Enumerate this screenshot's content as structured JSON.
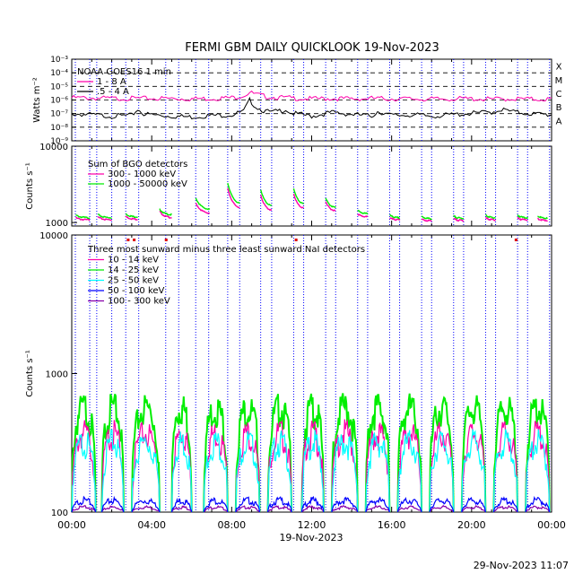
{
  "title": "FERMI GBM DAILY QUICKLOOK   19-Nov-2023",
  "footer": "29-Nov-2023 11:07",
  "xaxis": {
    "ticks": [
      "00:00",
      "04:00",
      "08:00",
      "12:00",
      "16:00",
      "20:00",
      "00:00"
    ],
    "label": "19-Nov-2023",
    "range_hours": [
      0,
      24
    ]
  },
  "colors": {
    "black": "#000000",
    "magenta": "#ff00aa",
    "green": "#00ee00",
    "cyan": "#00ffff",
    "blue": "#0000ff",
    "purple": "#8800aa",
    "red": "#dd0000",
    "saa_lines": "#0000ff"
  },
  "saa_hours": [
    0.18,
    0.9,
    1.25,
    2.0,
    2.7,
    3.35,
    4.7,
    5.35,
    6.2,
    6.85,
    7.8,
    8.4,
    9.45,
    10.0,
    11.1,
    11.6,
    12.7,
    13.2,
    14.3,
    14.8,
    15.9,
    16.4,
    17.5,
    18.0,
    19.1,
    19.6,
    20.7,
    21.2,
    22.3,
    22.8,
    23.9
  ],
  "chart_data": [
    {
      "type": "line",
      "title": "",
      "ylabel": "Watts m⁻²",
      "yscale": "log",
      "ylim": [
        1e-09,
        0.001
      ],
      "yticks": [
        "10⁻³",
        "10⁻⁴",
        "10⁻⁵",
        "10⁻⁶",
        "10⁻⁷",
        "10⁻⁸",
        "10⁻⁹"
      ],
      "class_labels": [
        "X",
        "M",
        "C",
        "B",
        "A"
      ],
      "legend": {
        "heading": "NOAA GOES16 1 min",
        "placement": "top-left"
      },
      "series": [
        {
          "name": "1 - 8 A",
          "color": "#ff00aa",
          "x": [
            0,
            1,
            2,
            3,
            4,
            5,
            6,
            7,
            8,
            8.6,
            8.9,
            9.2,
            9.6,
            10,
            11,
            12,
            13,
            14,
            15,
            16,
            17,
            18,
            19,
            20,
            21,
            22,
            23,
            24
          ],
          "y": [
            1.8e-06,
            1.7e-06,
            1.6e-06,
            1.6e-06,
            1.6e-06,
            1.6e-06,
            1.5e-06,
            1.6e-06,
            1.8e-06,
            2.6e-06,
            4.5e-06,
            3.2e-06,
            2.4e-06,
            2e-06,
            1.7e-06,
            1.5e-06,
            1.6e-06,
            1.5e-06,
            1.6e-06,
            1.5e-06,
            1.5e-06,
            1.4e-06,
            1.5e-06,
            1.5e-06,
            1.4e-06,
            1.5e-06,
            1.4e-06,
            1.4e-06
          ]
        },
        {
          "name": ".5 - 4 A",
          "color": "#000000",
          "x": [
            0,
            1,
            2,
            3,
            3.3,
            3.6,
            4,
            5,
            6,
            7,
            8,
            8.6,
            8.9,
            9.2,
            9.6,
            10,
            10.7,
            11,
            12,
            13,
            14,
            15,
            15.3,
            16,
            17,
            18,
            19,
            20,
            21,
            21.5,
            22,
            23,
            24
          ],
          "y": [
            1.2e-07,
            1e-07,
            8e-08,
            9e-08,
            2.5e-07,
            1.2e-07,
            1e-07,
            8e-08,
            7e-08,
            9e-08,
            1e-07,
            1.8e-07,
            1.2e-06,
            4e-07,
            2e-07,
            1.5e-07,
            2.5e-07,
            1.3e-07,
            8e-08,
            1.5e-07,
            1.1e-07,
            8e-08,
            1.8e-07,
            9e-08,
            1e-07,
            8e-08,
            1e-07,
            1.3e-07,
            1.6e-07,
            2.5e-07,
            1.7e-07,
            1.2e-07,
            1e-07
          ]
        }
      ]
    },
    {
      "type": "line",
      "title": "",
      "ylabel": "Counts s⁻¹",
      "yscale": "log",
      "ylim": [
        900,
        10000
      ],
      "yticks": [
        "10000",
        "1000"
      ],
      "legend": {
        "heading": "Sum of BGO detectors",
        "placement": "top-left"
      },
      "series": [
        {
          "name": "300 - 1000 keV",
          "color": "#ff00aa",
          "arcs": [
            [
              0.2,
              0.9,
              1150,
              1080
            ],
            [
              1.3,
              2.0,
              1180,
              1080
            ],
            [
              2.7,
              3.3,
              1200,
              1100
            ],
            [
              4.4,
              5.0,
              1400,
              1150
            ],
            [
              6.2,
              6.9,
              1800,
              1300
            ],
            [
              7.8,
              8.4,
              2800,
              1500
            ],
            [
              9.45,
              10.0,
              2300,
              1400
            ],
            [
              11.1,
              11.6,
              2400,
              1500
            ],
            [
              12.7,
              13.2,
              1900,
              1400
            ],
            [
              14.3,
              14.8,
              1300,
              1180
            ],
            [
              15.9,
              16.4,
              1150,
              1080
            ],
            [
              17.5,
              18.0,
              1100,
              1050
            ],
            [
              19.1,
              19.6,
              1120,
              1060
            ],
            [
              20.7,
              21.2,
              1150,
              1080
            ],
            [
              22.3,
              22.8,
              1150,
              1080
            ],
            [
              23.3,
              23.8,
              1120,
              1060
            ]
          ]
        },
        {
          "name": "1000 - 50000 keV",
          "color": "#00ee00",
          "arcs": [
            [
              0.2,
              0.9,
              1250,
              1150
            ],
            [
              1.3,
              2.0,
              1280,
              1150
            ],
            [
              2.7,
              3.3,
              1300,
              1180
            ],
            [
              4.4,
              5.0,
              1500,
              1250
            ],
            [
              6.2,
              6.9,
              2100,
              1450
            ],
            [
              7.8,
              8.4,
              3300,
              1700
            ],
            [
              9.45,
              10.0,
              2700,
              1600
            ],
            [
              11.1,
              11.6,
              2800,
              1700
            ],
            [
              12.7,
              13.2,
              2100,
              1550
            ],
            [
              14.3,
              14.8,
              1450,
              1300
            ],
            [
              15.9,
              16.4,
              1250,
              1150
            ],
            [
              17.5,
              18.0,
              1200,
              1120
            ],
            [
              19.1,
              19.6,
              1220,
              1130
            ],
            [
              20.7,
              21.2,
              1250,
              1150
            ],
            [
              22.3,
              22.8,
              1250,
              1150
            ],
            [
              23.3,
              23.8,
              1220,
              1130
            ]
          ]
        }
      ]
    },
    {
      "type": "line",
      "title": "",
      "ylabel": "Counts s⁻¹",
      "yscale": "log",
      "ylim": [
        100,
        10000
      ],
      "yticks": [
        "10000",
        "1000",
        "100"
      ],
      "legend": {
        "heading": "Three most sunward minus three least sunward NaI detectors",
        "placement": "top-left"
      },
      "series": [
        {
          "name": "10 - 14 keV",
          "color": "#ff00aa",
          "peak": 420
        },
        {
          "name": "14 - 25 keV",
          "color": "#00ee00",
          "peak": 650
        },
        {
          "name": "25 - 50 keV",
          "color": "#00ffff",
          "peak": 360
        },
        {
          "name": "50 - 100 keV",
          "color": "#0000ff",
          "peak": 125
        },
        {
          "name": "100 - 300 keV",
          "color": "#8800aa",
          "peak": 110
        }
      ],
      "orbits": [
        [
          0.0,
          1.2
        ],
        [
          1.5,
          2.6
        ],
        [
          3.0,
          4.4
        ],
        [
          5.0,
          6.0
        ],
        [
          6.6,
          7.8
        ],
        [
          8.2,
          9.4
        ],
        [
          9.8,
          11.0
        ],
        [
          11.5,
          12.6
        ],
        [
          13.0,
          14.3
        ],
        [
          14.7,
          15.9
        ],
        [
          16.3,
          17.5
        ],
        [
          17.9,
          19.1
        ],
        [
          19.5,
          20.7
        ],
        [
          21.1,
          22.3
        ],
        [
          22.7,
          23.9
        ]
      ],
      "markers_red_hours": [
        2.8,
        3.1,
        4.7,
        11.2,
        22.2
      ]
    }
  ]
}
